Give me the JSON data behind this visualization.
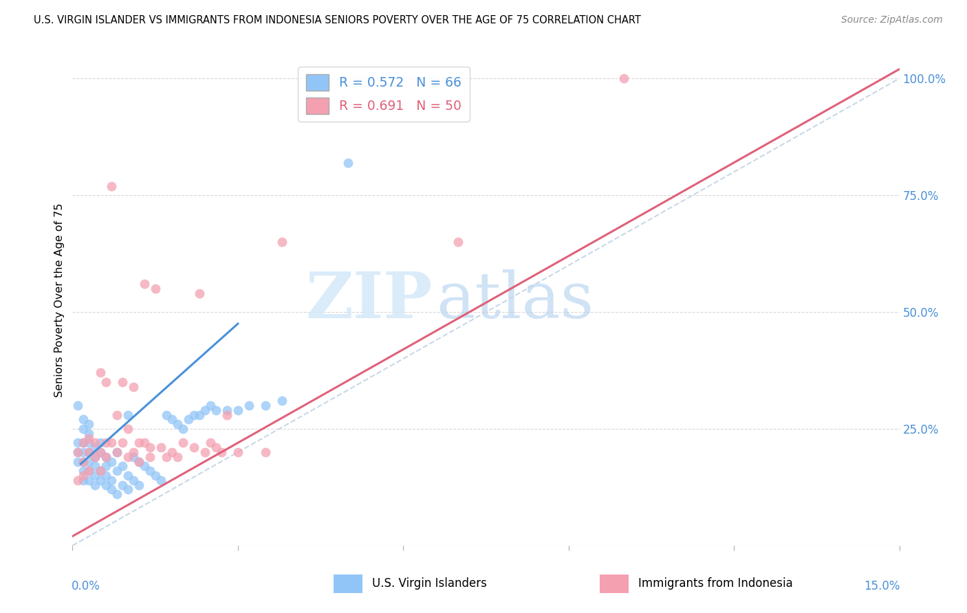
{
  "title": "U.S. VIRGIN ISLANDER VS IMMIGRANTS FROM INDONESIA SENIORS POVERTY OVER THE AGE OF 75 CORRELATION CHART",
  "source": "Source: ZipAtlas.com",
  "ylabel": "Seniors Poverty Over the Age of 75",
  "legend_r1": "R = 0.572",
  "legend_n1": "N = 66",
  "legend_r2": "R = 0.691",
  "legend_n2": "N = 50",
  "color_blue": "#92c5f7",
  "color_pink": "#f4a0b0",
  "color_blue_line": "#4a90d9",
  "color_pink_line": "#e0607a",
  "color_dashed_line": "#c8d8e8",
  "watermark_zip": "ZIP",
  "watermark_atlas": "atlas",
  "blue_scatter_x": [
    0.001,
    0.001,
    0.001,
    0.001,
    0.002,
    0.002,
    0.002,
    0.002,
    0.002,
    0.002,
    0.002,
    0.003,
    0.003,
    0.003,
    0.003,
    0.003,
    0.003,
    0.003,
    0.004,
    0.004,
    0.004,
    0.004,
    0.004,
    0.005,
    0.005,
    0.005,
    0.005,
    0.006,
    0.006,
    0.006,
    0.006,
    0.007,
    0.007,
    0.007,
    0.008,
    0.008,
    0.008,
    0.009,
    0.009,
    0.01,
    0.01,
    0.01,
    0.011,
    0.011,
    0.012,
    0.012,
    0.013,
    0.014,
    0.015,
    0.016,
    0.017,
    0.018,
    0.019,
    0.02,
    0.021,
    0.022,
    0.023,
    0.024,
    0.025,
    0.026,
    0.028,
    0.03,
    0.032,
    0.035,
    0.038,
    0.05
  ],
  "blue_scatter_y": [
    0.22,
    0.2,
    0.18,
    0.3,
    0.2,
    0.18,
    0.16,
    0.14,
    0.22,
    0.25,
    0.27,
    0.18,
    0.16,
    0.14,
    0.22,
    0.2,
    0.24,
    0.26,
    0.15,
    0.17,
    0.19,
    0.13,
    0.21,
    0.14,
    0.16,
    0.2,
    0.22,
    0.13,
    0.15,
    0.17,
    0.19,
    0.12,
    0.14,
    0.18,
    0.11,
    0.16,
    0.2,
    0.13,
    0.17,
    0.12,
    0.15,
    0.28,
    0.14,
    0.19,
    0.13,
    0.18,
    0.17,
    0.16,
    0.15,
    0.14,
    0.28,
    0.27,
    0.26,
    0.25,
    0.27,
    0.28,
    0.28,
    0.29,
    0.3,
    0.29,
    0.29,
    0.29,
    0.3,
    0.3,
    0.31,
    0.82
  ],
  "pink_scatter_x": [
    0.001,
    0.001,
    0.002,
    0.002,
    0.002,
    0.003,
    0.003,
    0.003,
    0.004,
    0.004,
    0.005,
    0.005,
    0.005,
    0.006,
    0.006,
    0.006,
    0.007,
    0.007,
    0.008,
    0.008,
    0.009,
    0.009,
    0.01,
    0.01,
    0.011,
    0.011,
    0.012,
    0.012,
    0.013,
    0.013,
    0.014,
    0.014,
    0.015,
    0.016,
    0.017,
    0.018,
    0.019,
    0.02,
    0.022,
    0.023,
    0.024,
    0.025,
    0.026,
    0.027,
    0.028,
    0.03,
    0.035,
    0.038,
    0.07,
    0.1
  ],
  "pink_scatter_y": [
    0.14,
    0.2,
    0.18,
    0.22,
    0.15,
    0.2,
    0.16,
    0.23,
    0.19,
    0.22,
    0.37,
    0.2,
    0.16,
    0.35,
    0.19,
    0.22,
    0.77,
    0.22,
    0.28,
    0.2,
    0.35,
    0.22,
    0.25,
    0.19,
    0.34,
    0.2,
    0.22,
    0.18,
    0.56,
    0.22,
    0.21,
    0.19,
    0.55,
    0.21,
    0.19,
    0.2,
    0.19,
    0.22,
    0.21,
    0.54,
    0.2,
    0.22,
    0.21,
    0.2,
    0.28,
    0.2,
    0.2,
    0.65,
    0.65,
    1.0
  ],
  "xlim": [
    0.0,
    0.15
  ],
  "ylim": [
    0.0,
    1.05
  ],
  "blue_line_x": [
    0.0015,
    0.03
  ],
  "blue_line_y": [
    0.175,
    0.475
  ],
  "pink_line_x": [
    0.0,
    0.15
  ],
  "pink_line_y": [
    0.02,
    1.02
  ],
  "diag_line_x": [
    0.0,
    0.15
  ],
  "diag_line_y": [
    0.0,
    1.0
  ]
}
